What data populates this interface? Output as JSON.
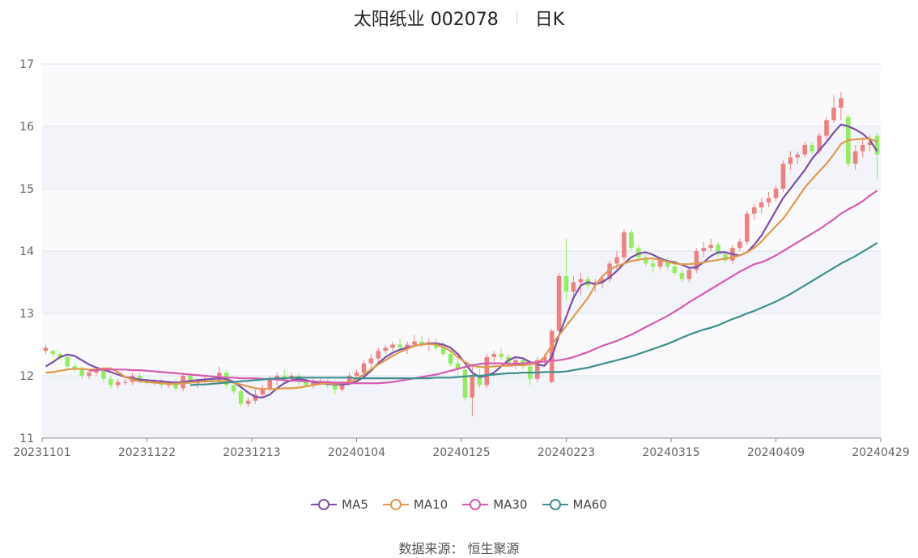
{
  "title": {
    "name": "太阳纸业 002078",
    "period": "日K"
  },
  "source": "数据来源： 恒生聚源",
  "colors": {
    "up": "#f08080",
    "down": "#90ee60",
    "ma5": "#7b4fa6",
    "ma10": "#e09a4c",
    "ma30": "#d65bb0",
    "ma60": "#3f8f8f"
  },
  "chart_data": {
    "type": "candlestick",
    "ylim": [
      11,
      17
    ],
    "yticks": [
      "11",
      "12",
      "13",
      "14",
      "15",
      "16",
      "17"
    ],
    "xticks": [
      "20231101",
      "20231122",
      "20231213",
      "20240104",
      "20240125",
      "20240223",
      "20240315",
      "20240409",
      "20240429"
    ],
    "grid": true,
    "legend_position": "bottom",
    "ohlc": [
      [
        12.4,
        12.5,
        12.35,
        12.45
      ],
      [
        12.4,
        12.42,
        12.3,
        12.35
      ],
      [
        12.35,
        12.38,
        12.25,
        12.3
      ],
      [
        12.3,
        12.35,
        12.1,
        12.15
      ],
      [
        12.15,
        12.2,
        12.05,
        12.1
      ],
      [
        12.1,
        12.15,
        11.95,
        12.0
      ],
      [
        12.0,
        12.1,
        11.95,
        12.05
      ],
      [
        12.05,
        12.15,
        12.0,
        12.1
      ],
      [
        12.1,
        12.12,
        11.9,
        11.95
      ],
      [
        11.95,
        12.0,
        11.8,
        11.85
      ],
      [
        11.85,
        11.95,
        11.8,
        11.9
      ],
      [
        11.9,
        11.95,
        11.85,
        11.9
      ],
      [
        11.9,
        12.05,
        11.85,
        12.0
      ],
      [
        12.0,
        12.05,
        11.88,
        11.9
      ],
      [
        11.9,
        11.95,
        11.85,
        11.88
      ],
      [
        11.88,
        11.95,
        11.85,
        11.92
      ],
      [
        11.92,
        11.95,
        11.8,
        11.85
      ],
      [
        11.85,
        11.9,
        11.8,
        11.88
      ],
      [
        11.88,
        11.95,
        11.75,
        11.8
      ],
      [
        11.8,
        12.05,
        11.75,
        12.0
      ],
      [
        12.0,
        12.05,
        11.85,
        11.88
      ],
      [
        11.88,
        11.95,
        11.8,
        11.92
      ],
      [
        11.92,
        12.0,
        11.85,
        11.95
      ],
      [
        11.95,
        12.0,
        11.85,
        11.9
      ],
      [
        11.9,
        12.15,
        11.85,
        12.05
      ],
      [
        12.05,
        12.1,
        11.8,
        11.85
      ],
      [
        11.85,
        11.9,
        11.7,
        11.75
      ],
      [
        11.75,
        11.8,
        11.5,
        11.55
      ],
      [
        11.55,
        11.65,
        11.5,
        11.6
      ],
      [
        11.6,
        11.78,
        11.55,
        11.7
      ],
      [
        11.7,
        11.85,
        11.65,
        11.8
      ],
      [
        11.8,
        12.0,
        11.75,
        11.95
      ],
      [
        11.95,
        12.05,
        11.85,
        12.0
      ],
      [
        12.0,
        12.1,
        11.9,
        11.95
      ],
      [
        11.95,
        12.05,
        11.9,
        12.0
      ],
      [
        12.0,
        12.05,
        11.85,
        11.9
      ],
      [
        11.9,
        11.98,
        11.82,
        11.85
      ],
      [
        11.85,
        11.95,
        11.8,
        11.9
      ],
      [
        11.9,
        11.95,
        11.85,
        11.9
      ],
      [
        11.9,
        11.95,
        11.8,
        11.85
      ],
      [
        11.85,
        11.92,
        11.7,
        11.78
      ],
      [
        11.78,
        11.92,
        11.75,
        11.9
      ],
      [
        11.9,
        12.05,
        11.85,
        12.0
      ],
      [
        12.0,
        12.1,
        11.95,
        12.05
      ],
      [
        12.05,
        12.25,
        12.0,
        12.2
      ],
      [
        12.2,
        12.35,
        12.1,
        12.28
      ],
      [
        12.28,
        12.45,
        12.2,
        12.4
      ],
      [
        12.4,
        12.5,
        12.35,
        12.45
      ],
      [
        12.45,
        12.55,
        12.4,
        12.5
      ],
      [
        12.5,
        12.6,
        12.4,
        12.45
      ],
      [
        12.45,
        12.55,
        12.35,
        12.5
      ],
      [
        12.5,
        12.65,
        12.45,
        12.55
      ],
      [
        12.55,
        12.65,
        12.45,
        12.5
      ],
      [
        12.5,
        12.6,
        12.4,
        12.52
      ],
      [
        12.52,
        12.6,
        12.4,
        12.45
      ],
      [
        12.45,
        12.55,
        12.3,
        12.35
      ],
      [
        12.35,
        12.4,
        12.15,
        12.2
      ],
      [
        12.2,
        12.3,
        12.0,
        12.1
      ],
      [
        12.1,
        12.15,
        11.6,
        11.65
      ],
      [
        11.65,
        12.15,
        11.35,
        12.0
      ],
      [
        12.0,
        12.1,
        11.8,
        11.85
      ],
      [
        11.85,
        12.35,
        11.8,
        12.3
      ],
      [
        12.3,
        12.4,
        12.2,
        12.35
      ],
      [
        12.35,
        12.45,
        12.25,
        12.3
      ],
      [
        12.3,
        12.35,
        12.15,
        12.2
      ],
      [
        12.2,
        12.3,
        12.1,
        12.25
      ],
      [
        12.25,
        12.3,
        12.1,
        12.15
      ],
      [
        12.15,
        12.25,
        11.85,
        11.95
      ],
      [
        11.95,
        12.3,
        11.9,
        12.25
      ],
      [
        12.25,
        12.35,
        12.15,
        12.3
      ],
      [
        11.9,
        12.75,
        11.88,
        12.72
      ],
      [
        12.72,
        13.65,
        12.7,
        13.6
      ],
      [
        13.6,
        14.2,
        13.2,
        13.35
      ],
      [
        13.35,
        13.6,
        13.2,
        13.5
      ],
      [
        13.5,
        13.65,
        13.3,
        13.55
      ],
      [
        13.55,
        13.6,
        13.4,
        13.45
      ],
      [
        13.45,
        13.55,
        13.35,
        13.5
      ],
      [
        13.5,
        13.6,
        13.4,
        13.55
      ],
      [
        13.55,
        13.85,
        13.5,
        13.8
      ],
      [
        13.8,
        14.0,
        13.7,
        13.9
      ],
      [
        13.9,
        14.35,
        13.85,
        14.3
      ],
      [
        14.3,
        14.35,
        14.0,
        14.05
      ],
      [
        14.05,
        14.1,
        13.85,
        13.9
      ],
      [
        13.9,
        13.95,
        13.75,
        13.8
      ],
      [
        13.8,
        13.9,
        13.65,
        13.75
      ],
      [
        13.75,
        13.9,
        13.7,
        13.85
      ],
      [
        13.85,
        13.9,
        13.7,
        13.75
      ],
      [
        13.75,
        13.85,
        13.6,
        13.65
      ],
      [
        13.65,
        13.7,
        13.5,
        13.55
      ],
      [
        13.55,
        13.75,
        13.5,
        13.7
      ],
      [
        13.7,
        14.05,
        13.65,
        14.0
      ],
      [
        14.0,
        14.15,
        13.9,
        14.05
      ],
      [
        14.05,
        14.2,
        14.0,
        14.1
      ],
      [
        14.1,
        14.15,
        13.9,
        13.95
      ],
      [
        13.95,
        14.0,
        13.8,
        13.85
      ],
      [
        13.85,
        14.1,
        13.8,
        14.05
      ],
      [
        14.05,
        14.2,
        14.0,
        14.15
      ],
      [
        14.15,
        14.65,
        14.1,
        14.6
      ],
      [
        14.6,
        14.75,
        14.5,
        14.7
      ],
      [
        14.7,
        14.85,
        14.6,
        14.78
      ],
      [
        14.78,
        14.95,
        14.7,
        14.85
      ],
      [
        14.85,
        15.05,
        14.8,
        15.0
      ],
      [
        15.0,
        15.45,
        14.95,
        15.4
      ],
      [
        15.4,
        15.6,
        15.3,
        15.5
      ],
      [
        15.5,
        15.6,
        15.4,
        15.55
      ],
      [
        15.55,
        15.75,
        15.5,
        15.7
      ],
      [
        15.7,
        15.75,
        15.55,
        15.6
      ],
      [
        15.6,
        15.9,
        15.55,
        15.85
      ],
      [
        15.85,
        16.15,
        15.8,
        16.1
      ],
      [
        16.1,
        16.5,
        16.05,
        16.3
      ],
      [
        16.3,
        16.55,
        16.1,
        16.45
      ],
      [
        16.15,
        16.2,
        15.35,
        15.4
      ],
      [
        15.4,
        15.7,
        15.3,
        15.6
      ],
      [
        15.6,
        15.8,
        15.5,
        15.7
      ],
      [
        15.7,
        15.85,
        15.6,
        15.75
      ],
      [
        15.85,
        15.9,
        15.15,
        15.55
      ]
    ],
    "series": [
      {
        "name": "MA5",
        "values": [
          12.15,
          12.22,
          12.3,
          12.34,
          12.32,
          12.25,
          12.18,
          12.13,
          12.1,
          12.06,
          12.02,
          11.98,
          11.96,
          11.94,
          11.93,
          11.92,
          11.91,
          11.9,
          11.89,
          11.9,
          11.92,
          11.93,
          11.94,
          11.95,
          11.96,
          11.95,
          11.9,
          11.82,
          11.73,
          11.66,
          11.65,
          11.7,
          11.8,
          11.88,
          11.93,
          11.95,
          11.93,
          11.9,
          11.88,
          11.87,
          11.86,
          11.86,
          11.87,
          11.91,
          11.98,
          12.08,
          12.2,
          12.3,
          12.37,
          12.42,
          12.45,
          12.48,
          12.5,
          12.52,
          12.52,
          12.5,
          12.45,
          12.35,
          12.2,
          12.05,
          11.98,
          12.0,
          12.05,
          12.15,
          12.25,
          12.3,
          12.28,
          12.22,
          12.18,
          12.16,
          12.3,
          12.65,
          12.95,
          13.25,
          13.45,
          13.5,
          13.47,
          13.5,
          13.58,
          13.68,
          13.8,
          13.9,
          13.96,
          13.98,
          13.94,
          13.88,
          13.84,
          13.82,
          13.78,
          13.73,
          13.74,
          13.82,
          13.92,
          13.98,
          13.98,
          13.95,
          13.93,
          13.98,
          14.1,
          14.25,
          14.45,
          14.65,
          14.85,
          15.0,
          15.15,
          15.3,
          15.48,
          15.62,
          15.75,
          15.9,
          16.03,
          16.0,
          15.95,
          15.88,
          15.78,
          15.6
        ]
      },
      {
        "name": "MA10",
        "values": [
          12.05,
          12.06,
          12.08,
          12.1,
          12.11,
          12.11,
          12.1,
          12.1,
          12.12,
          12.12,
          12.06,
          11.98,
          11.94,
          11.91,
          11.9,
          11.89,
          11.88,
          11.87,
          11.87,
          11.88,
          11.89,
          11.9,
          11.91,
          11.91,
          11.92,
          11.91,
          11.89,
          11.86,
          11.83,
          11.8,
          11.79,
          11.79,
          11.79,
          11.8,
          11.8,
          11.81,
          11.83,
          11.85,
          11.87,
          11.88,
          11.87,
          11.88,
          11.9,
          11.95,
          12.02,
          12.1,
          12.18,
          12.25,
          12.32,
          12.38,
          12.43,
          12.48,
          12.5,
          12.51,
          12.5,
          12.46,
          12.4,
          12.3,
          12.22,
          12.16,
          12.14,
          12.14,
          12.15,
          12.16,
          12.16,
          12.17,
          12.17,
          12.18,
          12.2,
          12.3,
          12.5,
          12.65,
          12.8,
          12.95,
          13.1,
          13.25,
          13.45,
          13.6,
          13.7,
          13.76,
          13.8,
          13.84,
          13.86,
          13.88,
          13.88,
          13.86,
          13.83,
          13.8,
          13.79,
          13.79,
          13.8,
          13.82,
          13.84,
          13.86,
          13.88,
          13.9,
          13.93,
          13.98,
          14.05,
          14.15,
          14.28,
          14.4,
          14.52,
          14.68,
          14.85,
          15.02,
          15.15,
          15.28,
          15.4,
          15.55,
          15.72,
          15.78,
          15.79,
          15.8,
          15.8,
          15.75
        ]
      },
      {
        "name": "MA30",
        "values": [
          12.08,
          12.09,
          12.1,
          12.1,
          12.1,
          12.1,
          12.09,
          12.09,
          12.08,
          12.07,
          12.06,
          12.05,
          12.04,
          12.03,
          12.02,
          12.01,
          12.0,
          11.99,
          11.98,
          11.97,
          11.97,
          11.96,
          11.96,
          11.96,
          11.95,
          11.95,
          11.94,
          11.93,
          11.92,
          11.92,
          11.91,
          11.91,
          11.9,
          11.9,
          11.89,
          11.89,
          11.88,
          11.88,
          11.88,
          11.88,
          11.88,
          11.89,
          11.9,
          11.92,
          11.94,
          11.96,
          11.98,
          12.0,
          12.02,
          12.05,
          12.08,
          12.11,
          12.14,
          12.17,
          12.19,
          12.2,
          12.2,
          12.2,
          12.19,
          12.19,
          12.2,
          12.21,
          12.22,
          12.23,
          12.24,
          12.25,
          12.27,
          12.3,
          12.34,
          12.38,
          12.43,
          12.48,
          12.52,
          12.56,
          12.61,
          12.66,
          12.72,
          12.78,
          12.84,
          12.9,
          12.96,
          13.03,
          13.1,
          13.18,
          13.25,
          13.32,
          13.39,
          13.46,
          13.53,
          13.6,
          13.67,
          13.73,
          13.79,
          13.82,
          13.87,
          13.93,
          14.0,
          14.07,
          14.14,
          14.21,
          14.28,
          14.35,
          14.43,
          14.51,
          14.6,
          14.67,
          14.73,
          14.8,
          14.89,
          14.97
        ]
      },
      {
        "name": "MA60",
        "values": [
          11.85,
          11.86,
          11.86,
          11.87,
          11.88,
          11.89,
          11.9,
          11.91,
          11.92,
          11.93,
          11.94,
          11.95,
          11.96,
          11.96,
          11.97,
          11.97,
          11.97,
          11.97,
          11.97,
          11.97,
          11.97,
          11.97,
          11.97,
          11.96,
          11.96,
          11.96,
          11.96,
          11.96,
          11.96,
          11.96,
          11.96,
          11.96,
          11.96,
          11.96,
          11.97,
          11.97,
          11.97,
          11.98,
          11.99,
          12.0,
          12.0,
          12.01,
          12.02,
          12.03,
          12.04,
          12.04,
          12.05,
          12.05,
          12.05,
          12.06,
          12.06,
          12.06,
          12.07,
          12.09,
          12.11,
          12.13,
          12.16,
          12.19,
          12.22,
          12.25,
          12.28,
          12.31,
          12.35,
          12.39,
          12.43,
          12.47,
          12.51,
          12.56,
          12.61,
          12.66,
          12.7,
          12.74,
          12.77,
          12.81,
          12.86,
          12.91,
          12.95,
          13.0,
          13.04,
          13.09,
          13.14,
          13.19,
          13.25,
          13.31,
          13.38,
          13.45,
          13.52,
          13.59,
          13.66,
          13.73,
          13.8,
          13.86,
          13.92,
          13.99,
          14.06,
          14.13
        ]
      }
    ]
  }
}
